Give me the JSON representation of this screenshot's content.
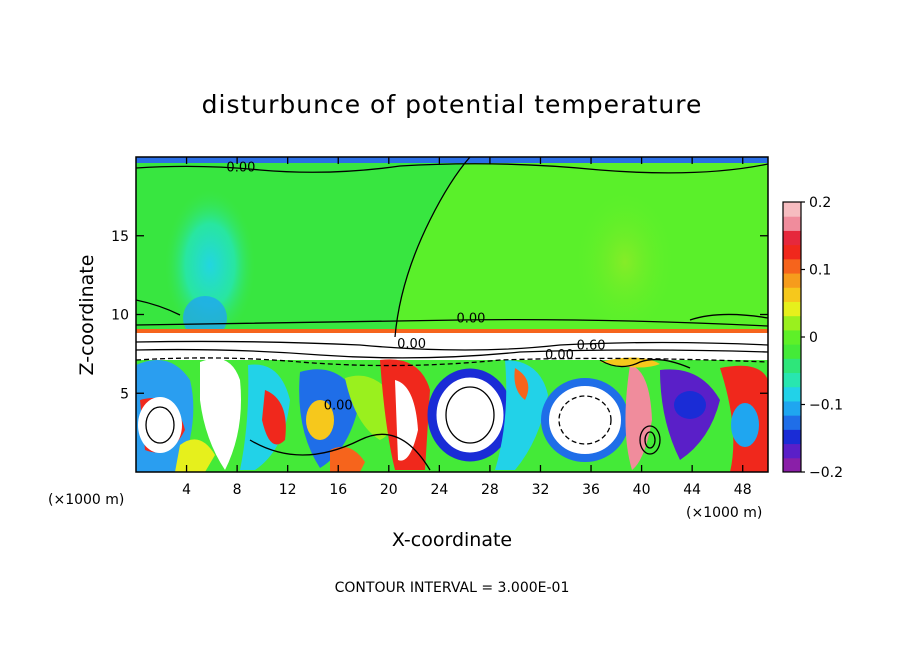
{
  "chart_data": {
    "type": "heatmap",
    "title": "disturbunce of potential temperature",
    "xlabel": "X-coordinate",
    "ylabel": "Z-coordinate",
    "x_unit_label_left": "(×1000 m)",
    "x_unit_label_right": "(×1000 m)",
    "xlim": [
      0,
      50
    ],
    "ylim": [
      0,
      20
    ],
    "x_ticks": [
      4,
      8,
      12,
      16,
      20,
      24,
      28,
      32,
      36,
      40,
      44,
      48
    ],
    "y_ticks": [
      5,
      10,
      15
    ],
    "colorbar": {
      "range": [
        -0.2,
        0.2
      ],
      "tick_labels": [
        "0.2",
        "0.1",
        "0",
        "−0.1",
        "−0.2"
      ],
      "tick_values": [
        0.2,
        0.1,
        0,
        -0.1,
        -0.2
      ],
      "colors": [
        "#8a1fa8",
        "#5a1fc8",
        "#1a2cd6",
        "#1f6ee8",
        "#1fa6f0",
        "#22d2e8",
        "#28e6b0",
        "#2ee67a",
        "#44ea38",
        "#5ef028",
        "#9af01e",
        "#e6f01c",
        "#f6c81c",
        "#f69c1c",
        "#f6641c",
        "#f0281c",
        "#e6283c",
        "#f08c9c",
        "#f6bcc0"
      ]
    },
    "contour_labels": [
      {
        "text": "0.00",
        "x": 8.3,
        "y": 19.4
      },
      {
        "text": "0.00",
        "x": 26.5,
        "y": 9.8
      },
      {
        "text": "0.00",
        "x": 21.8,
        "y": 8.2
      },
      {
        "text": "0.00",
        "x": 33.5,
        "y": 7.5
      },
      {
        "text": "0.60",
        "x": 36.0,
        "y": 8.1
      },
      {
        "text": "0.00",
        "x": 16.0,
        "y": 4.3
      }
    ],
    "footer": "CONTOUR INTERVAL = 3.000E-01"
  }
}
